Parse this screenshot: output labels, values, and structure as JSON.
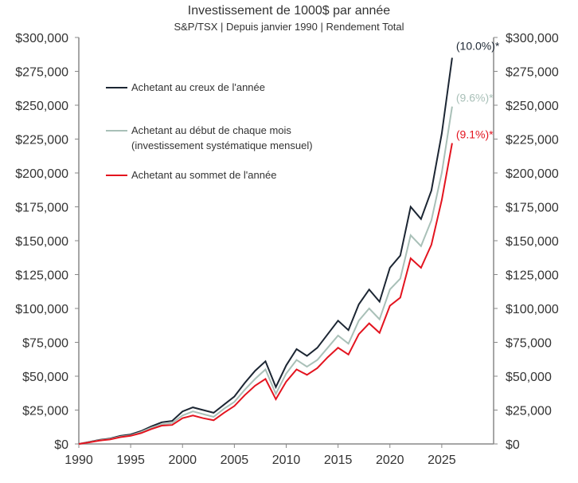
{
  "chart_data": {
    "type": "line",
    "title": "Investissement de 1000$ par année",
    "subtitle": "S&P/TSX | Depuis janvier 1990 | Rendement Total",
    "xlim": [
      1990,
      2030
    ],
    "ylim": [
      0,
      300000
    ],
    "x_ticks": [
      1990,
      1995,
      2000,
      2005,
      2010,
      2015,
      2020,
      2025
    ],
    "y_ticks": [
      0,
      25000,
      50000,
      75000,
      100000,
      125000,
      150000,
      175000,
      200000,
      225000,
      250000,
      275000,
      300000
    ],
    "y_tick_labels": [
      "$0",
      "$25,000",
      "$50,000",
      "$75,000",
      "$100,000",
      "$125,000",
      "$150,000",
      "$175,000",
      "$200,000",
      "$225,000",
      "$250,000",
      "$275,000",
      "$300,000"
    ],
    "legend_placement": "top-left",
    "x": [
      1990,
      1991,
      1992,
      1993,
      1994,
      1995,
      1996,
      1997,
      1998,
      1999,
      2000,
      2001,
      2002,
      2003,
      2004,
      2005,
      2006,
      2007,
      2008,
      2009,
      2010,
      2011,
      2012,
      2013,
      2014,
      2015,
      2016,
      2017,
      2018,
      2019,
      2020,
      2021,
      2022,
      2023,
      2024,
      2025,
      2026
    ],
    "series": [
      {
        "name": "Achetant au creux de l'année",
        "color": "#1c2633",
        "end_label": "(10.0%)*",
        "values": [
          0,
          1500,
          3000,
          4000,
          6000,
          7000,
          9500,
          13000,
          16000,
          17000,
          24000,
          27000,
          25000,
          23000,
          29000,
          35000,
          45000,
          54000,
          61000,
          42000,
          58000,
          70000,
          65000,
          71000,
          81000,
          91000,
          84000,
          103000,
          114000,
          105000,
          130000,
          139000,
          175000,
          166000,
          187000,
          229000,
          285000
        ]
      },
      {
        "name": "Achetant au début de chaque mois",
        "name_line2": "(investissement systématique mensuel)",
        "color": "#a9c0b8",
        "end_label": "(9.6%)*",
        "values": [
          0,
          1300,
          2700,
          3600,
          5400,
          6300,
          8800,
          12000,
          14500,
          15500,
          21000,
          24000,
          22000,
          20000,
          26000,
          31000,
          40000,
          48000,
          55000,
          37000,
          52000,
          62000,
          57000,
          62000,
          71000,
          80000,
          74000,
          91000,
          100000,
          92000,
          114000,
          122000,
          154000,
          146000,
          165000,
          200000,
          249000
        ]
      },
      {
        "name": "Achetant au sommet de l'année",
        "color": "#e3141f",
        "end_label": "(9.1%)*",
        "values": [
          0,
          1200,
          2500,
          3300,
          5000,
          6000,
          8000,
          11000,
          13500,
          14000,
          19000,
          21000,
          19000,
          17500,
          23000,
          28000,
          36000,
          43000,
          48000,
          33000,
          46000,
          55000,
          51000,
          56000,
          64000,
          71000,
          66000,
          81000,
          89000,
          82000,
          102000,
          108000,
          137000,
          130000,
          147000,
          180000,
          222000
        ]
      }
    ]
  }
}
